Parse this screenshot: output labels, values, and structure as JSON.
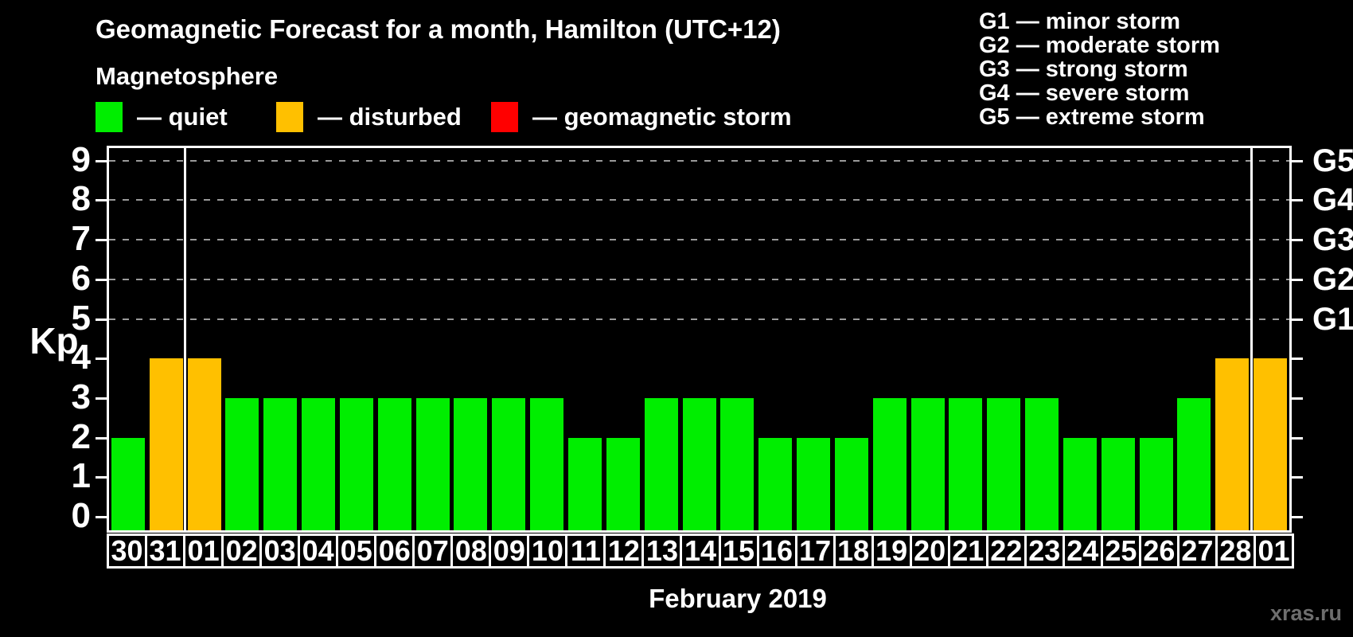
{
  "header": {
    "title": "Geomagnetic Forecast for a month, Hamilton (UTC+12)",
    "subtitle": "Magnetosphere",
    "legend": [
      {
        "name": "quiet",
        "label": "— quiet",
        "color": "#00ee00"
      },
      {
        "name": "disturbed",
        "label": "— disturbed",
        "color": "#ffc000"
      },
      {
        "name": "geomagnetic-storm",
        "label": "— geomagnetic storm",
        "color": "#ff0000"
      }
    ],
    "g_legend": [
      "G1 — minor storm",
      "G2 — moderate storm",
      "G3 — strong storm",
      "G4 — severe storm",
      "G5 — extreme storm"
    ]
  },
  "chart_data": {
    "type": "bar",
    "title": "Geomagnetic Forecast for a month, Hamilton (UTC+12)",
    "xlabel": "February 2019",
    "ylabel": "Kp",
    "ylim": [
      0,
      9
    ],
    "yticks": [
      0,
      1,
      2,
      3,
      4,
      5,
      6,
      7,
      8,
      9
    ],
    "grid_dashed_at": [
      5,
      6,
      7,
      8,
      9
    ],
    "right_axis_labels": [
      {
        "kp": 5,
        "label": "G1"
      },
      {
        "kp": 6,
        "label": "G2"
      },
      {
        "kp": 7,
        "label": "G3"
      },
      {
        "kp": 8,
        "label": "G4"
      },
      {
        "kp": 9,
        "label": "G5"
      }
    ],
    "categories": [
      "30",
      "31",
      "01",
      "02",
      "03",
      "04",
      "05",
      "06",
      "07",
      "08",
      "09",
      "10",
      "11",
      "12",
      "13",
      "14",
      "15",
      "16",
      "17",
      "18",
      "19",
      "20",
      "21",
      "22",
      "23",
      "24",
      "25",
      "26",
      "27",
      "28",
      "01"
    ],
    "values": [
      2,
      4,
      4,
      3,
      3,
      3,
      3,
      3,
      3,
      3,
      3,
      3,
      2,
      2,
      3,
      3,
      3,
      2,
      2,
      2,
      3,
      3,
      3,
      3,
      3,
      2,
      2,
      2,
      3,
      4,
      4
    ],
    "states": [
      "quiet",
      "disturbed",
      "disturbed",
      "quiet",
      "quiet",
      "quiet",
      "quiet",
      "quiet",
      "quiet",
      "quiet",
      "quiet",
      "quiet",
      "quiet",
      "quiet",
      "quiet",
      "quiet",
      "quiet",
      "quiet",
      "quiet",
      "quiet",
      "quiet",
      "quiet",
      "quiet",
      "quiet",
      "quiet",
      "quiet",
      "quiet",
      "quiet",
      "quiet",
      "disturbed",
      "disturbed"
    ],
    "state_colors": {
      "quiet": "#00ee00",
      "disturbed": "#ffc000",
      "storm": "#ff0000"
    },
    "month_separators_at_slot": [
      2,
      30
    ],
    "legend_position": "top"
  },
  "footer": {
    "caption": "February 2019",
    "watermark": "xras.ru"
  }
}
